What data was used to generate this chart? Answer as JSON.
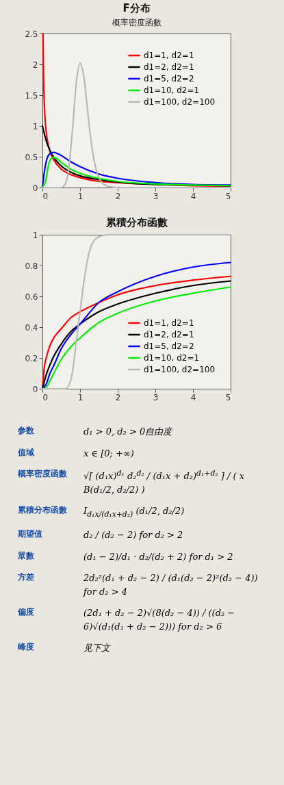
{
  "chart_data": [
    {
      "type": "line",
      "title": "F分布",
      "subtitle": "概率密度函數",
      "xlim": [
        0,
        5
      ],
      "xticks": [
        0,
        1,
        2,
        3,
        4,
        5
      ],
      "ylim": [
        0,
        2.5
      ],
      "yticks": [
        0,
        0.5,
        1,
        1.5,
        2,
        2.5
      ],
      "legend": "top right",
      "series": [
        {
          "name": "d1=1, d2=1",
          "color": "#ff0000",
          "x": [
            0.016,
            0.03,
            0.05,
            0.1,
            0.2,
            0.3,
            0.5,
            0.75,
            1,
            1.5,
            2,
            3,
            4,
            5
          ],
          "values": [
            2.5,
            1.8,
            1.36,
            0.91,
            0.59,
            0.45,
            0.3,
            0.21,
            0.16,
            0.1,
            0.08,
            0.05,
            0.03,
            0.02
          ]
        },
        {
          "name": "d1=2, d2=1",
          "color": "#000000",
          "x": [
            0,
            0.1,
            0.2,
            0.3,
            0.5,
            0.75,
            1,
            1.5,
            2,
            3,
            4,
            5
          ],
          "values": [
            1,
            0.76,
            0.6,
            0.49,
            0.35,
            0.25,
            0.19,
            0.13,
            0.09,
            0.05,
            0.04,
            0.03
          ]
        },
        {
          "name": "d1=5, d2=2",
          "color": "#0000ff",
          "x": [
            0,
            0.05,
            0.1,
            0.2,
            0.3,
            0.4,
            0.5,
            0.75,
            1,
            1.5,
            2,
            3,
            4,
            5
          ],
          "values": [
            0,
            0.25,
            0.42,
            0.55,
            0.57,
            0.55,
            0.52,
            0.42,
            0.34,
            0.22,
            0.15,
            0.08,
            0.05,
            0.04
          ]
        },
        {
          "name": "d1=10, d2=1",
          "color": "#00ee00",
          "x": [
            0,
            0.1,
            0.15,
            0.2,
            0.28,
            0.4,
            0.5,
            0.75,
            1,
            1.5,
            2,
            3,
            4,
            5
          ],
          "values": [
            0,
            0.15,
            0.33,
            0.44,
            0.49,
            0.46,
            0.41,
            0.3,
            0.23,
            0.15,
            0.1,
            0.06,
            0.04,
            0.03
          ]
        },
        {
          "name": "d1=100, d2=100",
          "color": "#b8b8b8",
          "x": [
            0,
            0.5,
            0.6,
            0.7,
            0.8,
            0.9,
            1,
            1.1,
            1.2,
            1.3,
            1.4,
            1.5,
            1.6,
            1.8,
            2,
            5
          ],
          "values": [
            0,
            0,
            0.05,
            0.3,
            0.95,
            1.7,
            2.02,
            1.8,
            1.25,
            0.72,
            0.36,
            0.16,
            0.07,
            0.01,
            0,
            0
          ]
        }
      ]
    },
    {
      "type": "line",
      "title": "累積分布函數",
      "xlim": [
        0,
        5
      ],
      "xticks": [
        0,
        1,
        2,
        3,
        4,
        5
      ],
      "ylim": [
        0,
        1
      ],
      "yticks": [
        0,
        0.2,
        0.4,
        0.6,
        0.8,
        1
      ],
      "legend": "bottom right",
      "series": [
        {
          "name": "d1=1, d2=1",
          "color": "#ff0000",
          "x": [
            0,
            0.05,
            0.1,
            0.2,
            0.3,
            0.5,
            0.75,
            1,
            1.5,
            2,
            3,
            4,
            5
          ],
          "values": [
            0,
            0.14,
            0.2,
            0.28,
            0.33,
            0.39,
            0.46,
            0.5,
            0.56,
            0.61,
            0.67,
            0.705,
            0.73
          ]
        },
        {
          "name": "d1=2, d2=1",
          "color": "#000000",
          "x": [
            0,
            0.1,
            0.2,
            0.3,
            0.5,
            0.75,
            1,
            1.5,
            2,
            3,
            4,
            5
          ],
          "values": [
            0,
            0.09,
            0.155,
            0.21,
            0.29,
            0.37,
            0.42,
            0.5,
            0.55,
            0.62,
            0.67,
            0.7
          ]
        },
        {
          "name": "d1=5, d2=2",
          "color": "#0000ff",
          "x": [
            0,
            0.1,
            0.2,
            0.3,
            0.5,
            0.75,
            1,
            1.5,
            2,
            3,
            4,
            5
          ],
          "values": [
            0,
            0.03,
            0.1,
            0.15,
            0.26,
            0.35,
            0.42,
            0.56,
            0.63,
            0.73,
            0.79,
            0.82
          ]
        },
        {
          "name": "d1=10, d2=1",
          "color": "#00ee00",
          "x": [
            0,
            0.1,
            0.2,
            0.3,
            0.5,
            0.75,
            1,
            1.5,
            2,
            3,
            4,
            5
          ],
          "values": [
            0,
            0.01,
            0.05,
            0.1,
            0.19,
            0.27,
            0.33,
            0.43,
            0.49,
            0.57,
            0.62,
            0.66
          ]
        },
        {
          "name": "d1=100, d2=100",
          "color": "#b8b8b8",
          "x": [
            0,
            0.6,
            0.7,
            0.8,
            0.9,
            1,
            1.1,
            1.2,
            1.3,
            1.4,
            1.6,
            1.8,
            5
          ],
          "values": [
            0,
            0,
            0.02,
            0.11,
            0.31,
            0.5,
            0.69,
            0.84,
            0.93,
            0.97,
            0.995,
            1,
            1
          ]
        }
      ]
    },
    {
      "type": "other",
      "annotations": [
        "参数",
        "d₁ > 0, d₂ > 0自由度",
        "值域",
        "x ∈ [0; +∞)",
        "概率密度函數",
        "√[ (d₁x)$^{d₁}$ d₂$^{d₂}$ / (d₁x + d₂)$^{d₁+d₂}$ ] / ( x B(d₁/2, d₂/2) )",
        "累積分布函數",
        "I$_{d₁x/(d₁x+d₂)}$ (d₁/2, d₂/2)",
        "期望值",
        "d₂ / (d₂ − 2) for d₂ > 2",
        "眾數",
        "(d₁ − 2)/d₁ · d₂/(d₂ + 2) for d₁ > 2",
        "方差",
        "2d₂²(d₁ + d₂ − 2) / (d₁(d₂ − 2)²(d₂ − 4)) for d₂ > 4",
        "偏度",
        "(2d₁ + d₂ − 2)√(8(d₂ − 4)) / ((d₂ − 6)√(d₁(d₁ + d₂ − 2))) for d₂ > 6",
        "峰度",
        "见下文"
      ]
    }
  ]
}
